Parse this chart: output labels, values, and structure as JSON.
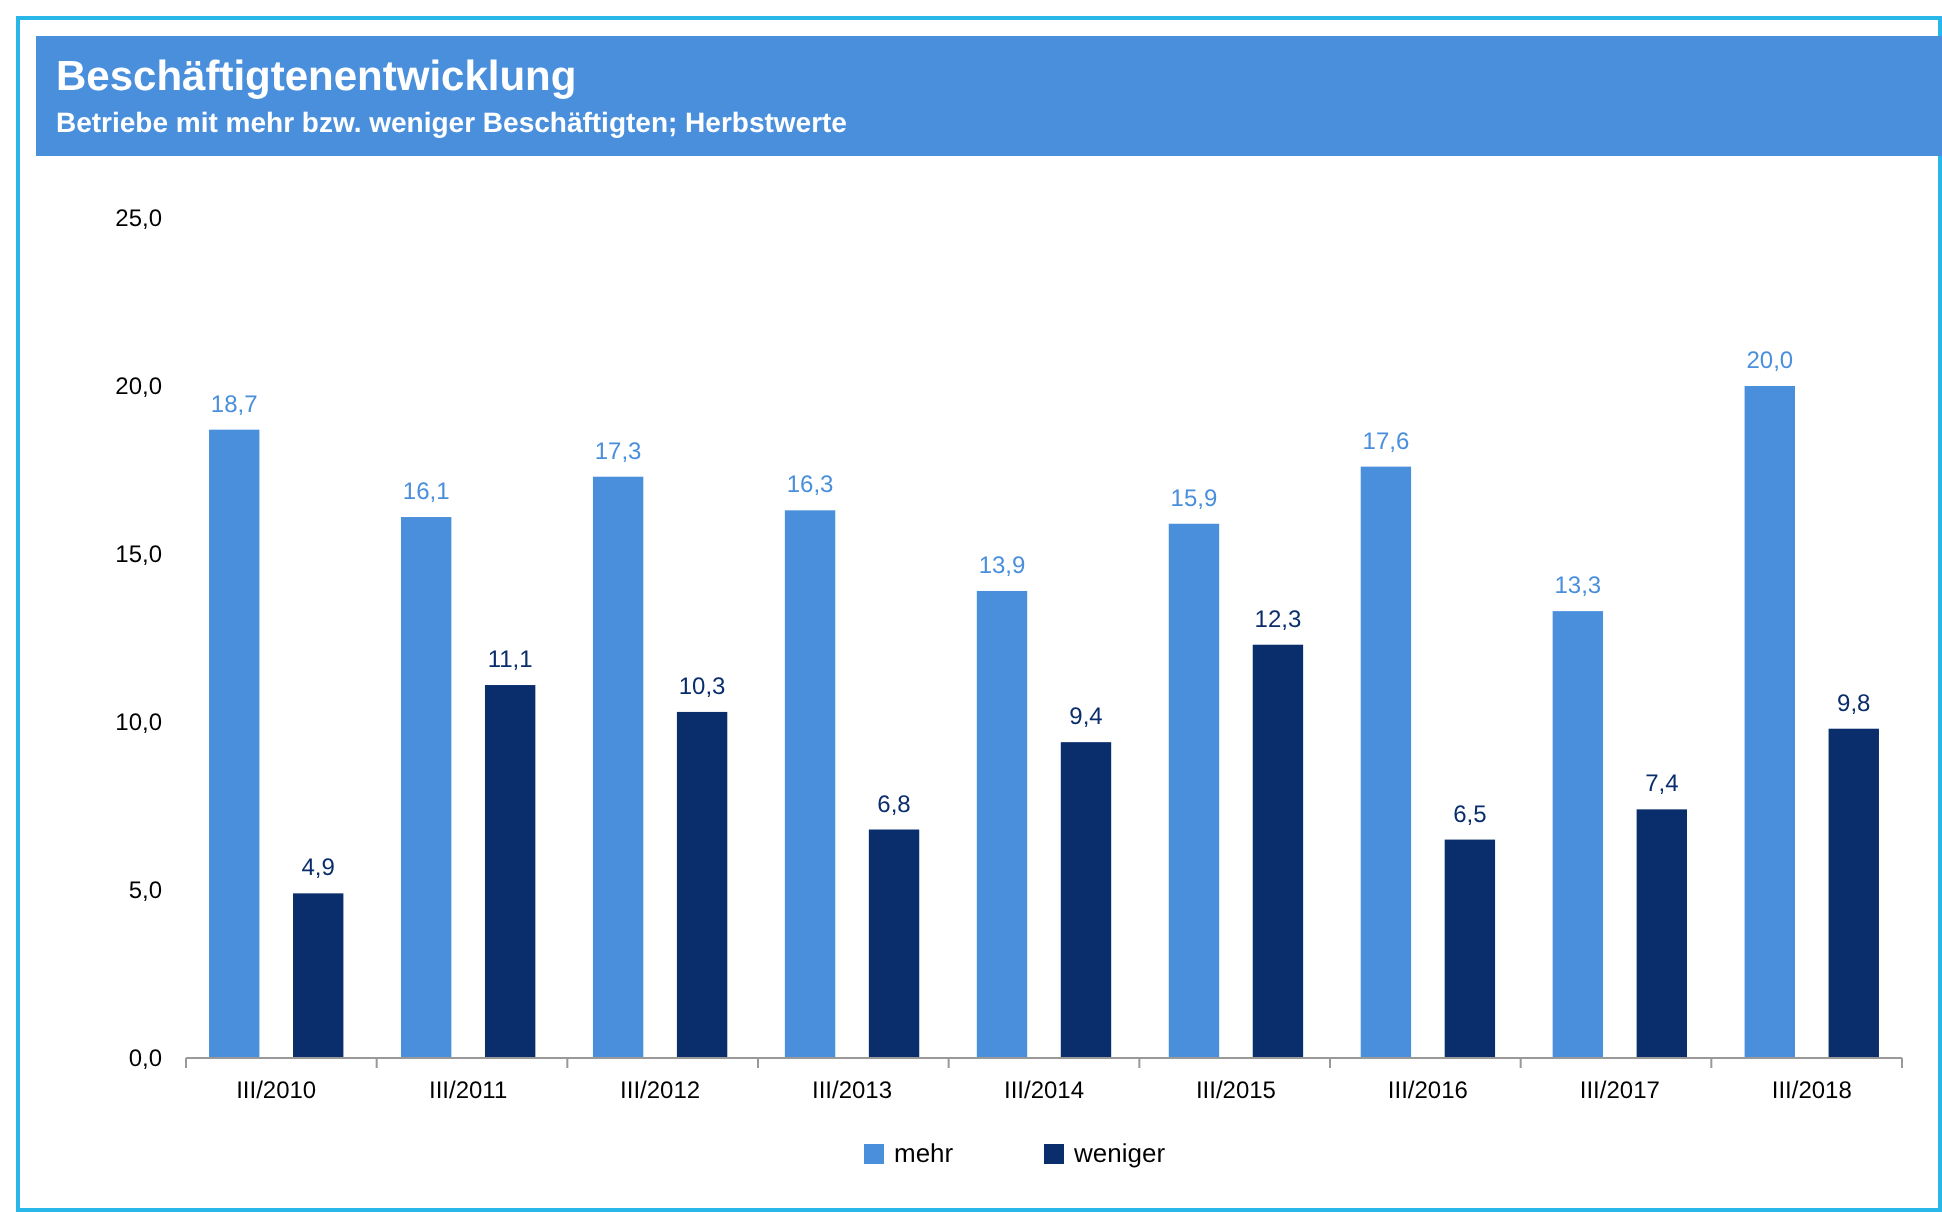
{
  "chart_data": {
    "type": "bar",
    "title": "Beschäftigtenentwicklung",
    "subtitle": "Betriebe mit mehr bzw. weniger Beschäftigten; Herbstwerte",
    "categories": [
      "III/2010",
      "III/2011",
      "III/2012",
      "III/2013",
      "III/2014",
      "III/2015",
      "III/2016",
      "III/2017",
      "III/2018"
    ],
    "series": [
      {
        "name": "mehr",
        "color": "#4a8fdc",
        "values": [
          18.7,
          16.1,
          17.3,
          16.3,
          13.9,
          15.9,
          17.6,
          13.3,
          20.0
        ],
        "value_labels": [
          "18,7",
          "16,1",
          "17,3",
          "16,3",
          "13,9",
          "15,9",
          "17,6",
          "13,3",
          "20,0"
        ]
      },
      {
        "name": "weniger",
        "color": "#0a2d6b",
        "values": [
          4.9,
          11.1,
          10.3,
          6.8,
          9.4,
          12.3,
          6.5,
          7.4,
          9.8
        ],
        "value_labels": [
          "4,9",
          "11,1",
          "10,3",
          "6,8",
          "9,4",
          "12,3",
          "6,5",
          "7,4",
          "9,8"
        ]
      }
    ],
    "ylim": [
      0,
      25
    ],
    "yticks": [
      {
        "value": 0,
        "label": "0,0"
      },
      {
        "value": 5,
        "label": "5,0"
      },
      {
        "value": 10,
        "label": "10,0"
      },
      {
        "value": 15,
        "label": "15,0"
      },
      {
        "value": 20,
        "label": "20,0"
      },
      {
        "value": 25,
        "label": "25,0"
      }
    ],
    "grid": false,
    "legend": "bottom"
  }
}
